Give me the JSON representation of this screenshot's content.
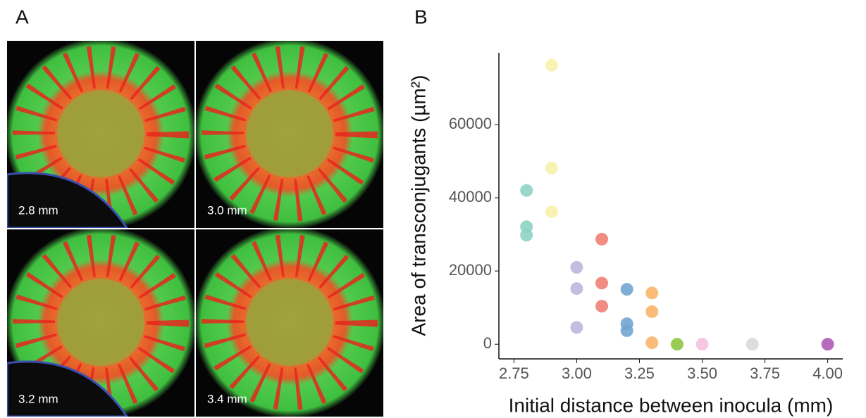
{
  "panel_labels": {
    "a": "A",
    "b": "B"
  },
  "images": [
    {
      "label": "2.8 mm"
    },
    {
      "label": "3.0 mm"
    },
    {
      "label": "3.2 mm"
    },
    {
      "label": "3.4 mm"
    }
  ],
  "chart_data": {
    "type": "scatter",
    "x_label": "Initial distance between inocula (mm)",
    "y_label": "Area of transconjugants (µm²)",
    "xlim": [
      2.69,
      4.06
    ],
    "ylim": [
      -4000,
      79600
    ],
    "xticks": [
      2.75,
      {
        "value": 3,
        "label": "3.00"
      },
      3.25,
      {
        "value": 3.5,
        "label": "3.50"
      },
      3.75,
      {
        "value": 4,
        "label": "4.00"
      }
    ],
    "yticks": [
      0,
      20000,
      40000,
      60000
    ],
    "series": [
      {
        "color": "#8fd3c5",
        "x": [
          2.8,
          2.8,
          2.8
        ],
        "values": [
          42000,
          32100,
          29800
        ]
      },
      {
        "color": "#f7f2aa",
        "x": [
          2.9,
          2.9,
          2.9
        ],
        "values": [
          76200,
          48100,
          36200
        ]
      },
      {
        "color": "#bcb7de",
        "x": [
          3.0,
          3.0,
          3.0
        ],
        "values": [
          21000,
          15200,
          4600
        ]
      },
      {
        "color": "#f08074",
        "x": [
          3.1,
          3.1,
          3.1
        ],
        "values": [
          28700,
          16700,
          10400
        ]
      },
      {
        "color": "#72a5d2",
        "x": [
          3.2,
          3.2,
          3.2
        ],
        "values": [
          15000,
          5600,
          3700
        ]
      },
      {
        "color": "#fbb56c",
        "x": [
          3.3,
          3.3,
          3.3
        ],
        "values": [
          14000,
          8900,
          400
        ]
      },
      {
        "color": "#8dc641",
        "x": [
          3.4
        ],
        "values": [
          0
        ]
      },
      {
        "color": "#f6c0e0",
        "x": [
          3.5
        ],
        "values": [
          0
        ]
      },
      {
        "color": "#d9d9d9",
        "x": [
          3.7
        ],
        "values": [
          0
        ]
      },
      {
        "color": "#b05ab4",
        "x": [
          4.0
        ],
        "values": [
          0
        ]
      }
    ]
  }
}
